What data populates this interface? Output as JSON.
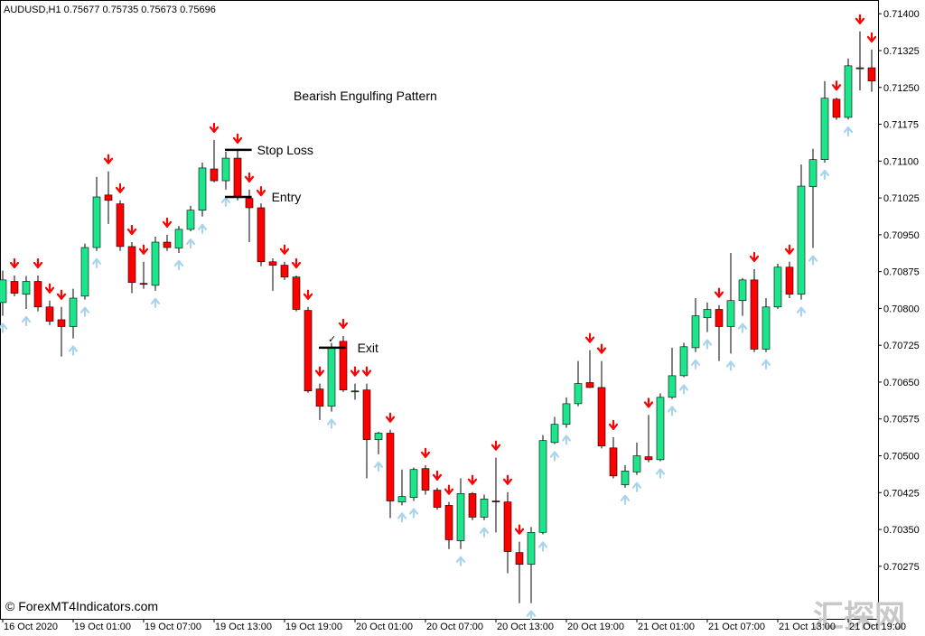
{
  "chart_data": {
    "type": "candlestick",
    "header": "AUDUSD,H1  0.75677 0.75735 0.75673 0.75696",
    "title": "Bearish Engulfing Pattern",
    "copyright": "© ForexMT4Indicators.com",
    "watermark": "汇探网",
    "exit_mark": "✓",
    "up_color": "#1de58b",
    "down_color": "#ff0000",
    "up_arrow_color": "#a9d4ec",
    "down_arrow_color": "#ff0000",
    "annotations": [
      {
        "text": "Stop Loss",
        "value": 0.71123
      },
      {
        "text": "Entry",
        "value": 0.71027
      },
      {
        "text": "Exit",
        "value": 0.7072
      }
    ],
    "categories": [
      "16 Oct 2020",
      null,
      null,
      null,
      null,
      null,
      "19 Oct 01:00",
      null,
      null,
      null,
      null,
      null,
      "19 Oct 07:00",
      null,
      null,
      null,
      null,
      null,
      "19 Oct 13:00",
      null,
      null,
      null,
      null,
      null,
      "19 Oct 19:00",
      null,
      null,
      null,
      null,
      null,
      "20 Oct 01:00",
      null,
      null,
      null,
      null,
      null,
      "20 Oct 07:00",
      null,
      null,
      null,
      null,
      null,
      "20 Oct 13:00",
      null,
      null,
      null,
      null,
      null,
      "20 Oct 19:00",
      null,
      null,
      null,
      null,
      null,
      "21 Oct 01:00",
      null,
      null,
      null,
      null,
      null,
      "21 Oct 07:00",
      null,
      null,
      null,
      null,
      null,
      "21 Oct 13:00",
      null,
      null,
      null,
      null,
      null,
      "21 Oct 19:00",
      null,
      null
    ],
    "open": [
      0.70812,
      0.70855,
      0.70829,
      0.70855,
      0.70803,
      0.70777,
      0.70763,
      0.70825,
      0.70924,
      0.71031,
      0.71013,
      0.70926,
      0.70851,
      0.70847,
      0.70935,
      0.70923,
      0.70961,
      0.71,
      0.71084,
      0.7106,
      0.71106,
      0.71024,
      0.71005,
      0.70895,
      0.70888,
      0.70864,
      0.70796,
      0.70636,
      0.70601,
      0.70733,
      0.70632,
      0.70634,
      0.70533,
      0.70546,
      0.70406,
      0.70415,
      0.70474,
      0.7043,
      0.70399,
      0.70327,
      0.70423,
      0.70375,
      0.70408,
      0.70406,
      0.70303,
      0.70279,
      0.70344,
      0.70527,
      0.70564,
      0.70606,
      0.70649,
      0.70639,
      0.70516,
      0.70441,
      0.70467,
      0.70498,
      0.70492,
      0.70619,
      0.70663,
      0.7072,
      0.70781,
      0.70798,
      0.70763,
      0.70816,
      0.70858,
      0.70717,
      0.70803,
      0.70884,
      0.70829,
      0.71048,
      0.71103,
      0.71226,
      0.71189,
      0.7129,
      0.7129
    ],
    "high": [
      0.70877,
      0.70867,
      0.70866,
      0.70867,
      0.70816,
      0.70803,
      0.7084,
      0.70932,
      0.71068,
      0.71079,
      0.7102,
      0.70935,
      0.70895,
      0.70946,
      0.7095,
      0.70968,
      0.71009,
      0.71097,
      0.71143,
      0.71119,
      0.71121,
      0.71042,
      0.71014,
      0.70902,
      0.70895,
      0.70867,
      0.70803,
      0.70647,
      0.7073,
      0.70744,
      0.70647,
      0.70647,
      0.70549,
      0.70553,
      0.70472,
      0.70476,
      0.70481,
      0.70435,
      0.70406,
      0.70454,
      0.70426,
      0.70421,
      0.70496,
      0.70426,
      0.70325,
      0.70355,
      0.70542,
      0.70579,
      0.70619,
      0.70693,
      0.70715,
      0.70693,
      0.70538,
      0.70481,
      0.70527,
      0.70583,
      0.70627,
      0.7072,
      0.7073,
      0.70821,
      0.70812,
      0.70807,
      0.70913,
      0.70862,
      0.7088,
      0.70821,
      0.70891,
      0.70895,
      0.71093,
      0.71125,
      0.71263,
      0.71229,
      0.71309,
      0.71364,
      0.71327
    ],
    "low": [
      0.70785,
      0.70825,
      0.70799,
      0.70794,
      0.70766,
      0.70702,
      0.70739,
      0.70818,
      0.70917,
      0.70972,
      0.70917,
      0.70831,
      0.7084,
      0.70836,
      0.70917,
      0.70913,
      0.70957,
      0.70987,
      0.71057,
      0.71042,
      0.7102,
      0.70935,
      0.70886,
      0.70836,
      0.70858,
      0.70794,
      0.70628,
      0.70573,
      0.7059,
      0.7063,
      0.70614,
      0.70454,
      0.70503,
      0.70373,
      0.70399,
      0.70408,
      0.70421,
      0.7039,
      0.7031,
      0.7031,
      0.70369,
      0.70369,
      0.70344,
      0.70261,
      0.702,
      0.702,
      0.7034,
      0.70524,
      0.70557,
      0.70601,
      0.70638,
      0.70515,
      0.70454,
      0.70435,
      0.70461,
      0.70487,
      0.70489,
      0.70616,
      0.7066,
      0.70711,
      0.70752,
      0.70693,
      0.70708,
      0.70785,
      0.70711,
      0.70711,
      0.70799,
      0.70821,
      0.70818,
      0.70923,
      0.71097,
      0.71184,
      0.71185,
      0.71244,
      0.71241
    ],
    "close": [
      0.70858,
      0.70831,
      0.70855,
      0.70803,
      0.70774,
      0.70763,
      0.70821,
      0.70924,
      0.71027,
      0.7102,
      0.70926,
      0.70853,
      0.70849,
      0.70935,
      0.70924,
      0.70961,
      0.71,
      0.71086,
      0.7106,
      0.71106,
      0.71027,
      0.71005,
      0.70895,
      0.70888,
      0.70864,
      0.70798,
      0.70632,
      0.70601,
      0.70719,
      0.70634,
      0.7063,
      0.70533,
      0.70546,
      0.70408,
      0.70417,
      0.70472,
      0.7043,
      0.70395,
      0.70329,
      0.70423,
      0.70375,
      0.70412,
      0.70406,
      0.70305,
      0.70279,
      0.70344,
      0.70531,
      0.70564,
      0.70606,
      0.70647,
      0.70639,
      0.7052,
      0.70459,
      0.70469,
      0.705,
      0.70492,
      0.70619,
      0.70663,
      0.70722,
      0.70785,
      0.70798,
      0.70763,
      0.70816,
      0.70858,
      0.70717,
      0.70803,
      0.70884,
      0.70829,
      0.71049,
      0.71103,
      0.71228,
      0.71189,
      0.71294,
      0.71288,
      0.71263
    ],
    "signals": [
      "up",
      "down",
      "up",
      "down",
      "down",
      "down",
      "up",
      "up",
      "up",
      "down",
      "down",
      "down",
      "down",
      "up",
      "down",
      "up",
      "up",
      "up",
      "down",
      "up",
      "down",
      "down",
      "down",
      null,
      "down",
      "down",
      "down",
      "down",
      "up",
      "down",
      "down",
      "down",
      "up",
      "down",
      "up",
      "up",
      "down",
      "down",
      "down",
      "up",
      "down",
      "up",
      "down",
      "down",
      "down",
      "up",
      "up",
      "up",
      "up",
      null,
      "down",
      "down",
      "down",
      "up",
      "up",
      "down",
      "up",
      "up",
      "up",
      "up",
      "up",
      "down",
      "up",
      "up",
      "down",
      "up",
      null,
      "down",
      "up",
      "up",
      "up",
      "down",
      "up",
      "down",
      "down"
    ],
    "ylim": [
      0.70168,
      0.71428
    ],
    "yticks": [
      {
        "value": 0.714,
        "label": "0.71400"
      },
      {
        "value": 0.71325,
        "label": "0.71325"
      },
      {
        "value": 0.7125,
        "label": "0.71250"
      },
      {
        "value": 0.71175,
        "label": "0.71175"
      },
      {
        "value": 0.711,
        "label": "0.71100"
      },
      {
        "value": 0.71025,
        "label": "0.71025"
      },
      {
        "value": 0.7095,
        "label": "0.70950"
      },
      {
        "value": 0.70875,
        "label": "0.70875"
      },
      {
        "value": 0.708,
        "label": "0.70800"
      },
      {
        "value": 0.70725,
        "label": "0.70725"
      },
      {
        "value": 0.7065,
        "label": "0.70650"
      },
      {
        "value": 0.70575,
        "label": "0.70575"
      },
      {
        "value": 0.705,
        "label": "0.70500"
      },
      {
        "value": 0.70425,
        "label": "0.70425"
      },
      {
        "value": 0.7035,
        "label": "0.70350"
      },
      {
        "value": 0.70275,
        "label": "0.70275"
      }
    ]
  }
}
